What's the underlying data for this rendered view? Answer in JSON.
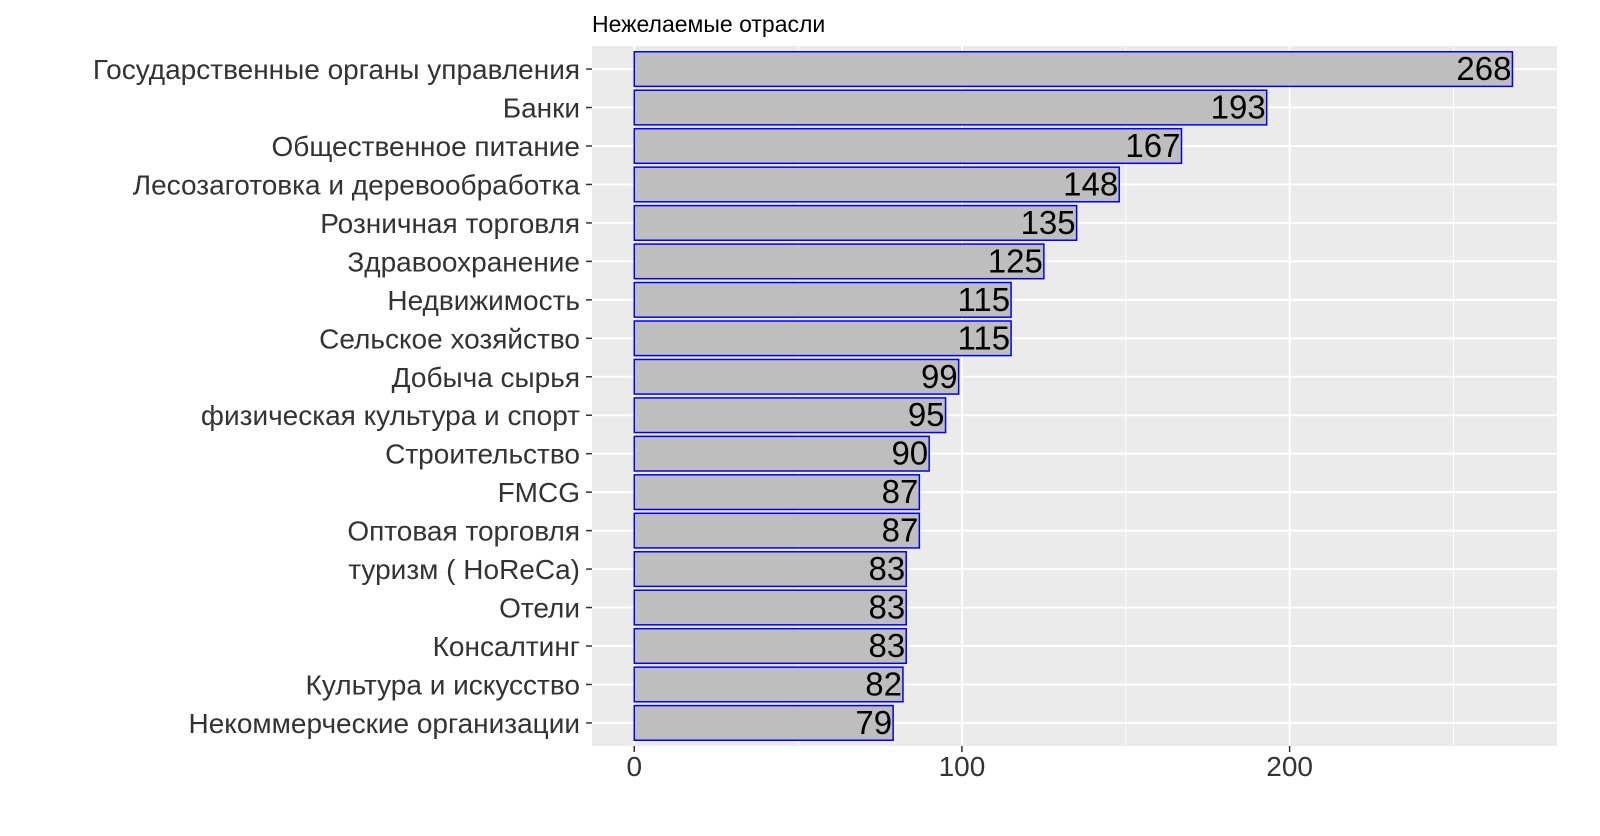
{
  "chart_data": {
    "type": "bar",
    "orientation": "horizontal",
    "title": "Нежелаемые отрасли",
    "xlabel": "",
    "ylabel": "",
    "categories": [
      "Государственные органы управления",
      "Банки",
      "Общественное питание",
      "Лесозаготовка и деревообработка",
      "Розничная торговля",
      "Здравоохранение",
      "Недвижимость",
      "Сельское хозяйство",
      "Добыча сырья",
      "физическая культура и спорт",
      "Строительство",
      "FMCG",
      "Оптовая торговля",
      "туризм ( HoReCa)",
      "Отели",
      "Консалтинг",
      "Культура и искусство",
      "Некоммерческие организации"
    ],
    "values": [
      268,
      193,
      167,
      148,
      135,
      125,
      115,
      115,
      99,
      95,
      90,
      87,
      87,
      83,
      83,
      83,
      82,
      79
    ],
    "xlim": [
      -12.9,
      281.6
    ],
    "xticks": [
      0,
      100,
      200
    ],
    "xtick_labels": [
      "0",
      "100",
      "200"
    ],
    "grid": true,
    "legend": "none",
    "colors": {
      "panel": "#EBEBEB",
      "grid_major": "#FFFFFF",
      "bar_fill": "#BEBEBE",
      "bar_stroke": "#0000FF",
      "text": "#333333",
      "label": "#000000"
    }
  }
}
